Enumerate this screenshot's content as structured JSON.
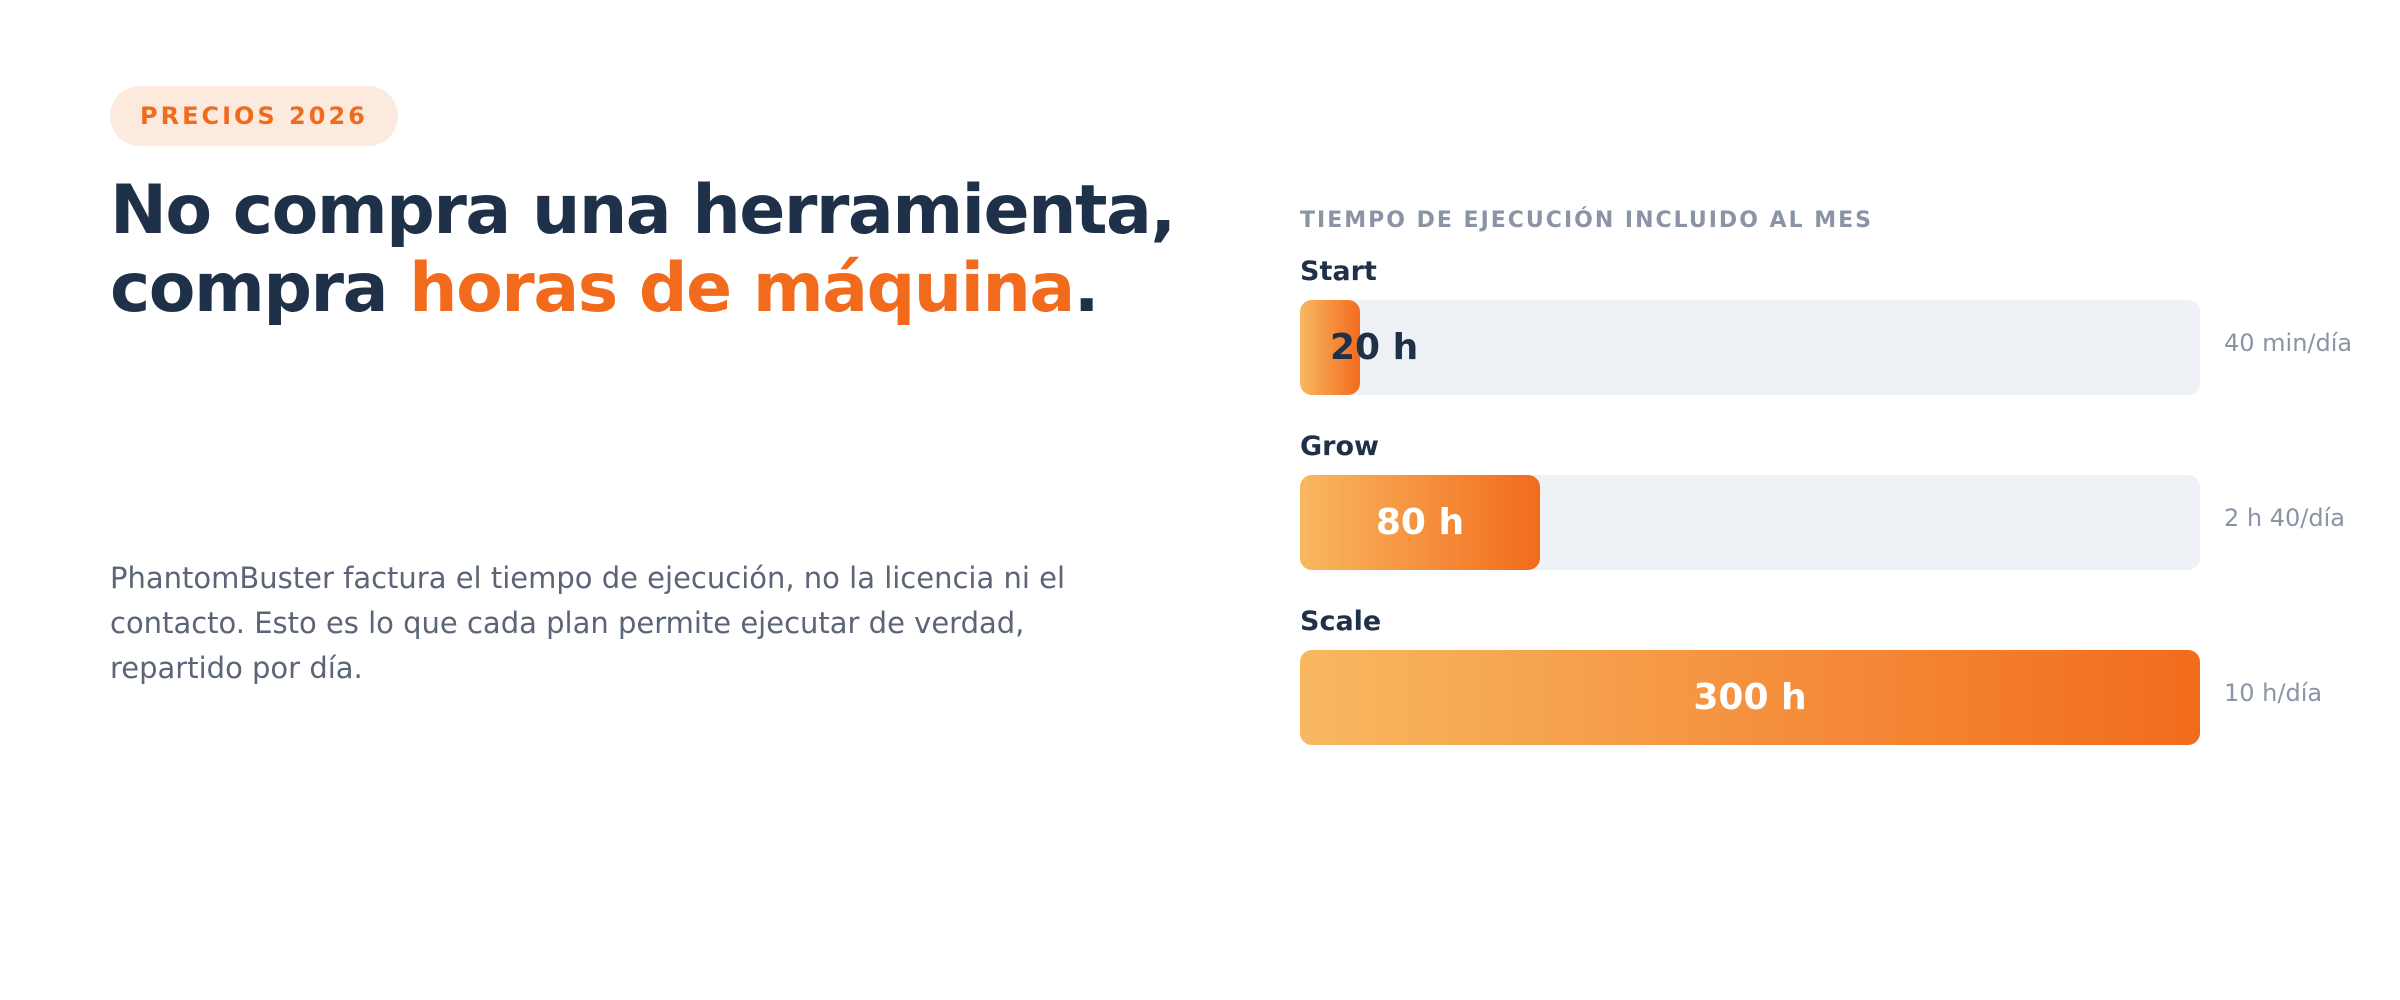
{
  "header": {
    "badge": "PRECIOS 2026",
    "headline": {
      "lead": "No compra una herramienta, compra ",
      "highlight": "horas de máquina",
      "end": "."
    },
    "description": "PhantomBuster factura el tiempo de ejecución, no la licencia ni el contacto. Esto es lo que cada plan permite ejecutar de verdad, repartido por día."
  },
  "chart_data": {
    "type": "bar",
    "orientation": "horizontal",
    "title": "TIEMPO DE EJECUCIÓN INCLUIDO AL MES",
    "categories": [
      "Start",
      "Grow",
      "Scale"
    ],
    "values": [
      20,
      80,
      300
    ],
    "value_labels": [
      "20 h",
      "80 h",
      "300 h"
    ],
    "annotations": [
      "40 min/día",
      "2 h 40/día",
      "10 h/día"
    ],
    "xlim": [
      0,
      300
    ],
    "color": "#f26b1d"
  }
}
